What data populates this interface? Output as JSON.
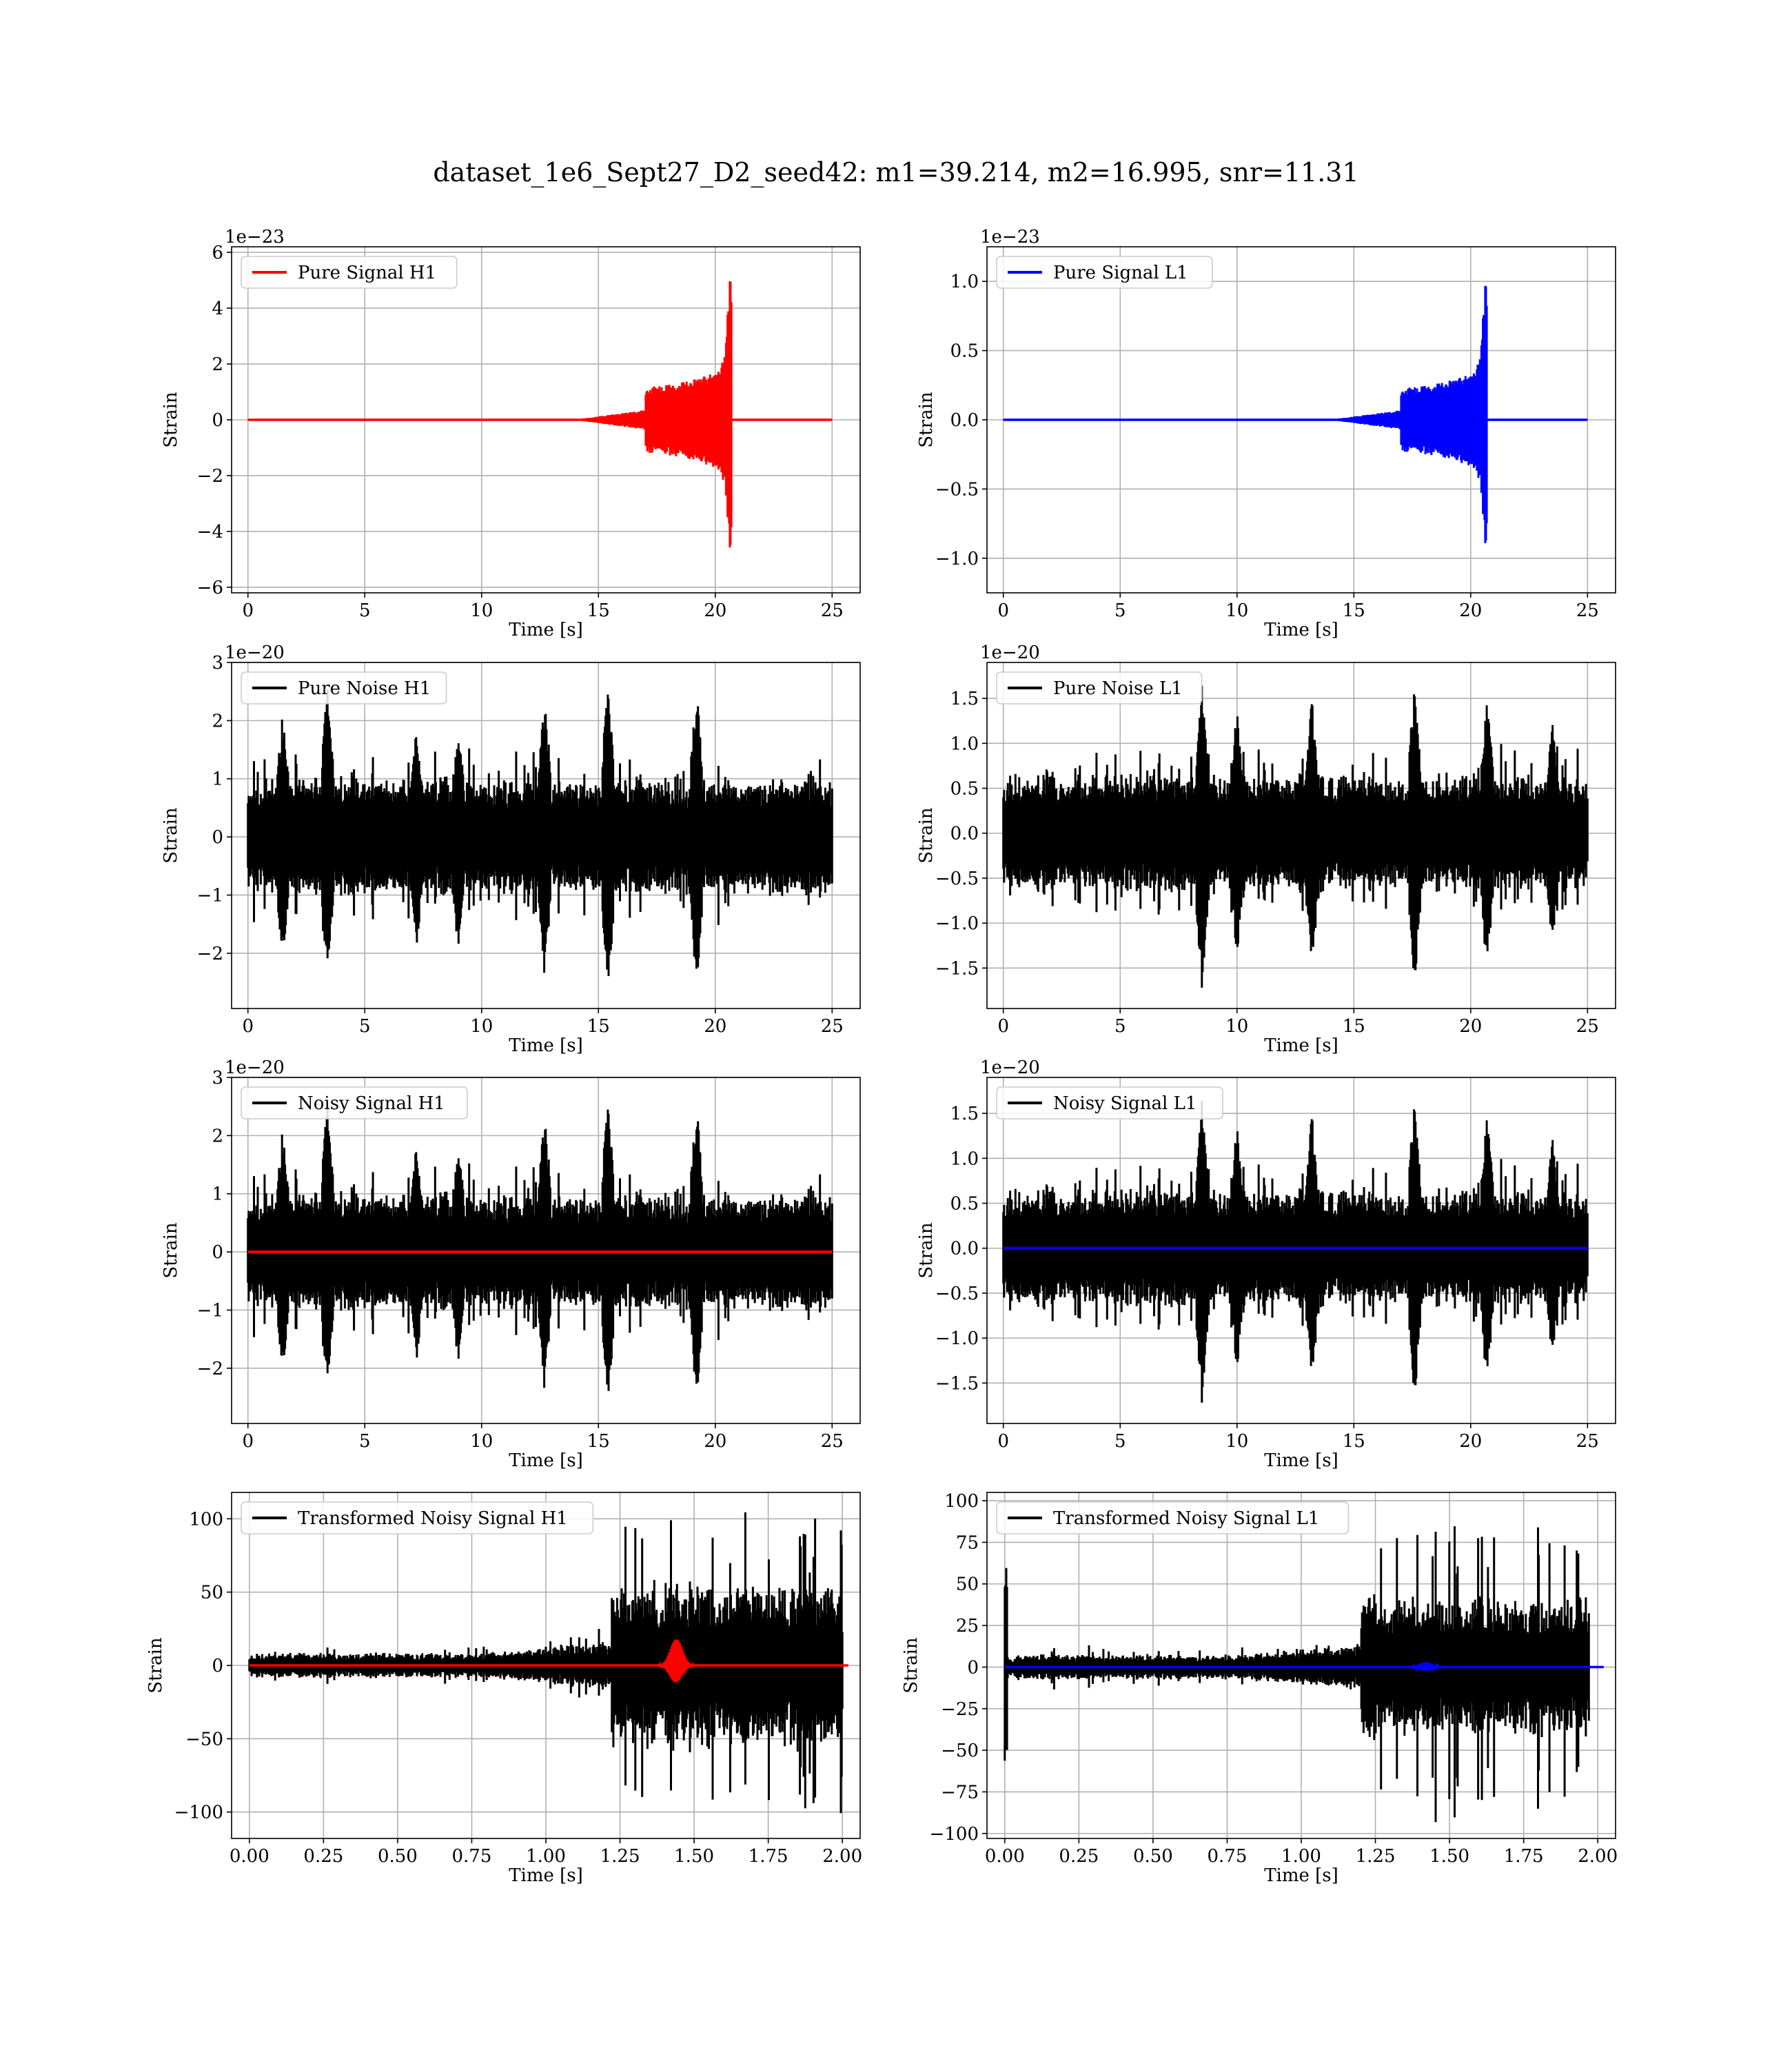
{
  "figure": {
    "title": "dataset_1e6_Sept27_D2_seed42: m1=39.214, m2=16.995, snr=11.31"
  },
  "colors": {
    "h1_signal": "#ff0000",
    "l1_signal": "#0000ff",
    "noise": "#000000",
    "grid": "#b0b0b0"
  },
  "chart_data": [
    {
      "id": "pure-signal-h1",
      "type": "line",
      "title": "",
      "xlabel": "Time [s]",
      "ylabel": "Strain",
      "offset_text": "1e−23",
      "xlim": [
        -0.7,
        26.2
      ],
      "ylim": [
        -6.2,
        6.2
      ],
      "xticks": [
        0,
        5,
        10,
        15,
        20,
        25
      ],
      "xtick_labels": [
        "0",
        "5",
        "10",
        "15",
        "20",
        "25"
      ],
      "yticks": [
        -6,
        -4,
        -2,
        0,
        2,
        4,
        6
      ],
      "ytick_labels": [
        "−6",
        "−4",
        "−2",
        "0",
        "2",
        "4",
        "6"
      ],
      "grid": true,
      "legend_position": "upper-left",
      "series": [
        {
          "name": "Pure Signal H1",
          "color": "#ff0000",
          "kind": "chirp",
          "x_range": [
            0,
            25
          ],
          "merger_time": 20.65,
          "peak_amplitude": 5.75,
          "base_amplitude": 0.05
        }
      ]
    },
    {
      "id": "pure-signal-l1",
      "type": "line",
      "title": "",
      "xlabel": "Time [s]",
      "ylabel": "Strain",
      "offset_text": "1e−23",
      "xlim": [
        -0.7,
        26.2
      ],
      "ylim": [
        -1.25,
        1.25
      ],
      "xticks": [
        0,
        5,
        10,
        15,
        20,
        25
      ],
      "xtick_labels": [
        "0",
        "5",
        "10",
        "15",
        "20",
        "25"
      ],
      "yticks": [
        -1.0,
        -0.5,
        0.0,
        0.5,
        1.0
      ],
      "ytick_labels": [
        "−1.0",
        "−0.5",
        "0.0",
        "0.5",
        "1.0"
      ],
      "grid": true,
      "legend_position": "upper-left",
      "series": [
        {
          "name": "Pure Signal L1",
          "color": "#0000ff",
          "kind": "chirp",
          "x_range": [
            0,
            25
          ],
          "merger_time": 20.65,
          "peak_amplitude": 1.12,
          "base_amplitude": 0.01
        }
      ]
    },
    {
      "id": "pure-noise-h1",
      "type": "line",
      "title": "",
      "xlabel": "Time [s]",
      "ylabel": "Strain",
      "offset_text": "1e−20",
      "xlim": [
        -0.7,
        26.2
      ],
      "ylim": [
        -2.95,
        3.0
      ],
      "xticks": [
        0,
        5,
        10,
        15,
        20,
        25
      ],
      "xtick_labels": [
        "0",
        "5",
        "10",
        "15",
        "20",
        "25"
      ],
      "yticks": [
        -2,
        -1,
        0,
        1,
        2,
        3
      ],
      "ytick_labels": [
        "−2",
        "−1",
        "0",
        "1",
        "2",
        "3"
      ],
      "grid": true,
      "legend_position": "upper-left",
      "series": [
        {
          "name": "Pure Noise H1",
          "color": "#000000",
          "kind": "noise",
          "x_range": [
            0,
            25
          ],
          "base_amplitude": 1.05,
          "seed": 11,
          "spikes": [
            [
              3.4,
              2.65
            ],
            [
              9.0,
              1.95
            ],
            [
              12.7,
              2.45
            ],
            [
              15.4,
              2.75
            ],
            [
              19.2,
              2.6
            ],
            [
              1.5,
              2.2
            ],
            [
              7.2,
              2.0
            ]
          ]
        }
      ]
    },
    {
      "id": "pure-noise-l1",
      "type": "line",
      "title": "",
      "xlabel": "Time [s]",
      "ylabel": "Strain",
      "offset_text": "1e−20",
      "xlim": [
        -0.7,
        26.2
      ],
      "ylim": [
        -1.95,
        1.9
      ],
      "xticks": [
        0,
        5,
        10,
        15,
        20,
        25
      ],
      "xtick_labels": [
        "0",
        "5",
        "10",
        "15",
        "20",
        "25"
      ],
      "yticks": [
        -1.5,
        -1.0,
        -0.5,
        0.0,
        0.5,
        1.0,
        1.5
      ],
      "ytick_labels": [
        "−1.5",
        "−1.0",
        "−0.5",
        "0.0",
        "0.5",
        "1.0",
        "1.5"
      ],
      "grid": true,
      "legend_position": "upper-left",
      "series": [
        {
          "name": "Pure Noise L1",
          "color": "#000000",
          "kind": "noise",
          "x_range": [
            0,
            25
          ],
          "base_amplitude": 0.68,
          "seed": 23,
          "spikes": [
            [
              8.5,
              1.75
            ],
            [
              13.2,
              1.55
            ],
            [
              17.6,
              1.7
            ],
            [
              20.7,
              1.6
            ],
            [
              10.0,
              1.4
            ],
            [
              23.5,
              1.3
            ]
          ]
        }
      ]
    },
    {
      "id": "noisy-signal-h1",
      "type": "line",
      "title": "",
      "xlabel": "Time [s]",
      "ylabel": "Strain",
      "offset_text": "1e−20",
      "xlim": [
        -0.7,
        26.2
      ],
      "ylim": [
        -2.95,
        3.0
      ],
      "xticks": [
        0,
        5,
        10,
        15,
        20,
        25
      ],
      "xtick_labels": [
        "0",
        "5",
        "10",
        "15",
        "20",
        "25"
      ],
      "yticks": [
        -2,
        -1,
        0,
        1,
        2,
        3
      ],
      "ytick_labels": [
        "−2",
        "−1",
        "0",
        "1",
        "2",
        "3"
      ],
      "grid": true,
      "legend_position": "upper-left",
      "series": [
        {
          "name": "Noisy Signal H1",
          "color": "#000000",
          "kind": "noise",
          "x_range": [
            0,
            25
          ],
          "base_amplitude": 1.05,
          "seed": 11,
          "spikes": [
            [
              3.4,
              2.65
            ],
            [
              9.0,
              1.95
            ],
            [
              12.7,
              2.45
            ],
            [
              15.4,
              2.75
            ],
            [
              19.2,
              2.6
            ],
            [
              1.5,
              2.2
            ],
            [
              7.2,
              2.0
            ]
          ]
        },
        {
          "color": "#ff0000",
          "kind": "flat",
          "x_range": [
            0,
            25
          ],
          "value": 0
        }
      ]
    },
    {
      "id": "noisy-signal-l1",
      "type": "line",
      "title": "",
      "xlabel": "Time [s]",
      "ylabel": "Strain",
      "offset_text": "1e−20",
      "xlim": [
        -0.7,
        26.2
      ],
      "ylim": [
        -1.95,
        1.9
      ],
      "xticks": [
        0,
        5,
        10,
        15,
        20,
        25
      ],
      "xtick_labels": [
        "0",
        "5",
        "10",
        "15",
        "20",
        "25"
      ],
      "yticks": [
        -1.5,
        -1.0,
        -0.5,
        0.0,
        0.5,
        1.0,
        1.5
      ],
      "ytick_labels": [
        "−1.5",
        "−1.0",
        "−0.5",
        "0.0",
        "0.5",
        "1.0",
        "1.5"
      ],
      "grid": true,
      "legend_position": "upper-left",
      "series": [
        {
          "name": "Noisy Signal L1",
          "color": "#000000",
          "kind": "noise",
          "x_range": [
            0,
            25
          ],
          "base_amplitude": 0.68,
          "seed": 23,
          "spikes": [
            [
              8.5,
              1.75
            ],
            [
              13.2,
              1.55
            ],
            [
              17.6,
              1.7
            ],
            [
              20.7,
              1.6
            ],
            [
              10.0,
              1.4
            ],
            [
              23.5,
              1.3
            ]
          ]
        },
        {
          "color": "#0000ff",
          "kind": "flat",
          "x_range": [
            0,
            25
          ],
          "value": 0
        }
      ]
    },
    {
      "id": "transformed-h1",
      "type": "line",
      "title": "",
      "xlabel": "Time [s]",
      "ylabel": "Strain",
      "offset_text": "",
      "xlim": [
        -0.06,
        2.06
      ],
      "ylim": [
        -118,
        118
      ],
      "xticks": [
        0.0,
        0.25,
        0.5,
        0.75,
        1.0,
        1.25,
        1.5,
        1.75,
        2.0
      ],
      "xtick_labels": [
        "0.00",
        "0.25",
        "0.50",
        "0.75",
        "1.00",
        "1.25",
        "1.50",
        "1.75",
        "2.00"
      ],
      "yticks": [
        -100,
        -50,
        0,
        50,
        100
      ],
      "ytick_labels": [
        "−100",
        "−50",
        "0",
        "50",
        "100"
      ],
      "grid": true,
      "legend_position": "upper-left",
      "series": [
        {
          "name": "Transformed Noisy Signal H1",
          "color": "#000000",
          "kind": "transformed",
          "x_range": [
            0,
            2.0
          ],
          "seed": 37,
          "low_amplitude": 9,
          "mid_amplitude": 18,
          "mid_start": 0.8,
          "jump_time": 1.22,
          "high_amplitude": 60,
          "peak_amplitude": 110
        },
        {
          "color": "#ff0000",
          "kind": "burst",
          "x_range": [
            0,
            2.02
          ],
          "center": 1.44,
          "amplitude": 18,
          "width": 0.02
        }
      ]
    },
    {
      "id": "transformed-l1",
      "type": "line",
      "title": "",
      "xlabel": "Time [s]",
      "ylabel": "Strain",
      "offset_text": "",
      "xlim": [
        -0.06,
        2.06
      ],
      "ylim": [
        -103,
        105
      ],
      "xticks": [
        0.0,
        0.25,
        0.5,
        0.75,
        1.0,
        1.25,
        1.5,
        1.75,
        2.0
      ],
      "xtick_labels": [
        "0.00",
        "0.25",
        "0.50",
        "0.75",
        "1.00",
        "1.25",
        "1.50",
        "1.75",
        "2.00"
      ],
      "yticks": [
        -100,
        -75,
        -50,
        -25,
        0,
        25,
        50,
        75,
        100
      ],
      "ytick_labels": [
        "−100",
        "−75",
        "−50",
        "−25",
        "0",
        "25",
        "50",
        "75",
        "100"
      ],
      "grid": true,
      "legend_position": "upper-left",
      "series": [
        {
          "name": "Transformed Noisy Signal L1",
          "color": "#000000",
          "kind": "transformed",
          "x_range": [
            0,
            1.97
          ],
          "seed": 53,
          "low_amplitude": 8,
          "mid_amplitude": 15,
          "mid_start": 0.8,
          "jump_time": 1.2,
          "high_amplitude": 45,
          "peak_amplitude": 95,
          "start_spike": 62
        },
        {
          "color": "#0000ff",
          "kind": "burst",
          "x_range": [
            0,
            2.02
          ],
          "center": 1.42,
          "amplitude": 3,
          "width": 0.02
        }
      ]
    }
  ]
}
